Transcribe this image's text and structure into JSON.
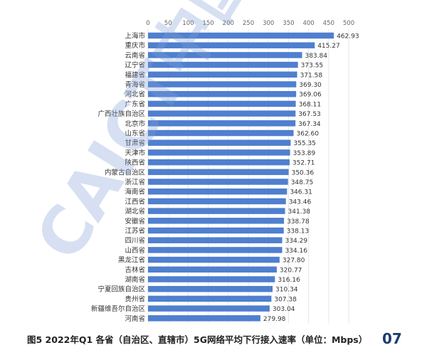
{
  "caption": "图5 2022年Q1 各省（自治区、直辖市）5G网络平均下行接入速率（单位：Mbps）",
  "page_number": "07",
  "watermark_text": "CAICT中国",
  "colors": {
    "bar": "#4f7fcf",
    "grid": "#e6e6e6",
    "watermark": "#7f9fd6",
    "page_number": "#1f3c6e"
  },
  "chart_data": {
    "type": "bar",
    "orientation": "horizontal",
    "title": "",
    "xlabel": "",
    "ylabel": "",
    "xlim": [
      0,
      500
    ],
    "x_ticks": [
      0,
      50,
      100,
      150,
      200,
      250,
      300,
      350,
      400,
      450,
      500
    ],
    "x_axis_position": "top",
    "grid": true,
    "categories": [
      "上海市",
      "重庆市",
      "云南省",
      "辽宁省",
      "福建省",
      "青海省",
      "河北省",
      "广东省",
      "广西壮族自治区",
      "北京市",
      "山东省",
      "甘肃省",
      "天津市",
      "陕西省",
      "内蒙古自治区",
      "浙江省",
      "海南省",
      "江西省",
      "湖北省",
      "安徽省",
      "江苏省",
      "四川省",
      "山西省",
      "黑龙江省",
      "吉林省",
      "湖南省",
      "宁夏回族自治区",
      "贵州省",
      "新疆维吾尔自治区",
      "河南省"
    ],
    "values": [
      462.93,
      415.27,
      383.84,
      373.55,
      371.58,
      369.3,
      369.06,
      368.11,
      367.53,
      367.34,
      362.6,
      355.35,
      353.89,
      352.71,
      350.36,
      348.75,
      346.31,
      343.46,
      341.38,
      338.78,
      338.13,
      334.29,
      334.16,
      327.8,
      320.77,
      316.16,
      310.34,
      307.38,
      303.04,
      279.98
    ],
    "value_labels": [
      "462.93",
      "415.27",
      "383.84",
      "373.55",
      "371.58",
      "369.30",
      "369.06",
      "368.11",
      "367.53",
      "367.34",
      "362.60",
      "355.35",
      "353.89",
      "352.71",
      "350.36",
      "348.75",
      "346.31",
      "343.46",
      "341.38",
      "338.78",
      "338.13",
      "334.29",
      "334.16",
      "327.80",
      "320.77",
      "316.16",
      "310.34",
      "307.38",
      "303.04",
      "279.98"
    ]
  }
}
